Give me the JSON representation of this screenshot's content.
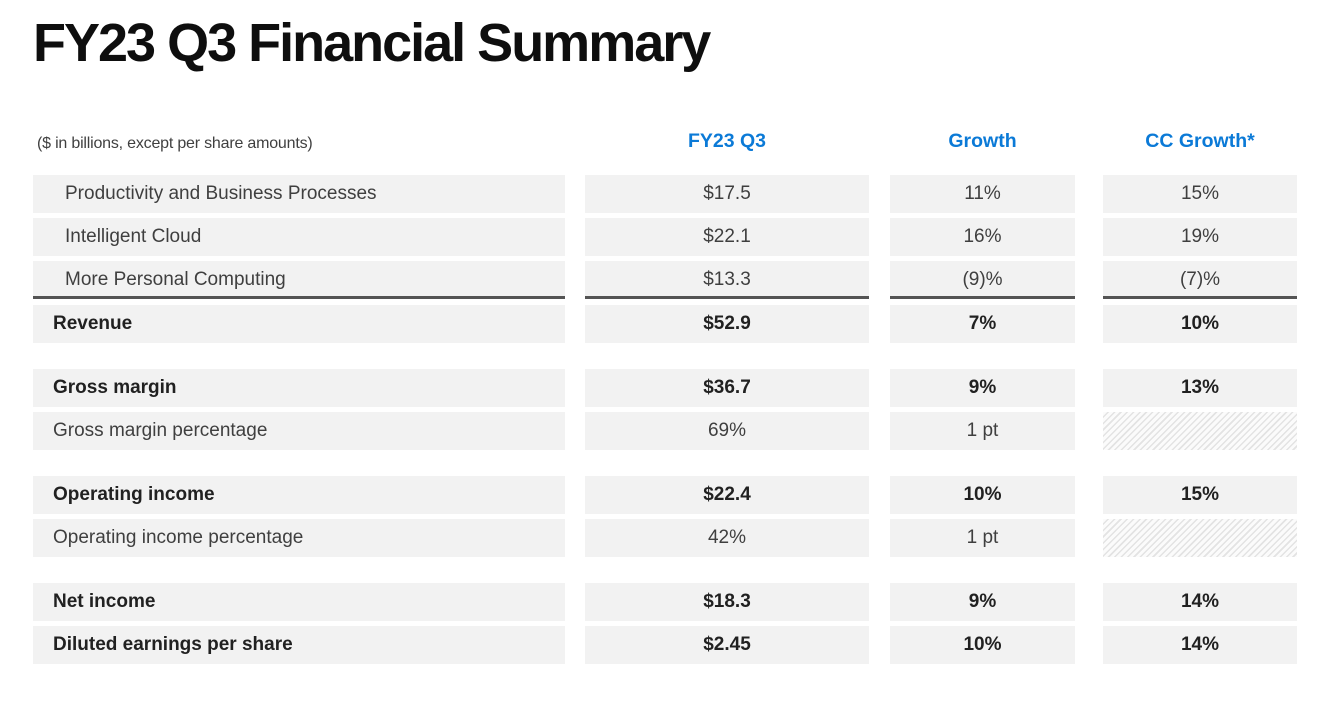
{
  "slide": {
    "title": "FY23 Q3 Financial Summary",
    "note": "($ in billions, except per share amounts)",
    "columns": [
      "FY23 Q3",
      "Growth",
      "CC Growth*"
    ],
    "colors": {
      "header_accent_blue": "#0b7ad7",
      "row_background": "#f2f2f2",
      "total_underline": "#545454",
      "title_text": "#0e0e0e",
      "body_text": "#3f3f3f"
    },
    "rows": [
      {
        "label": "Productivity and Business Processes",
        "fy23q3": "$17.5",
        "growth": "11%",
        "cc_growth": "15%"
      },
      {
        "label": "Intelligent Cloud",
        "fy23q3": "$22.1",
        "growth": "16%",
        "cc_growth": "19%"
      },
      {
        "label": "More Personal Computing",
        "fy23q3": "$13.3",
        "growth": "(9)%",
        "cc_growth": "(7)%"
      },
      {
        "label": "Revenue",
        "fy23q3": "$52.9",
        "growth": "7%",
        "cc_growth": "10%"
      },
      {
        "label": "Gross margin",
        "fy23q3": "$36.7",
        "growth": "9%",
        "cc_growth": "13%"
      },
      {
        "label": "Gross margin percentage",
        "fy23q3": "69%",
        "growth": "1 pt",
        "cc_growth": ""
      },
      {
        "label": "Operating income",
        "fy23q3": "$22.4",
        "growth": "10%",
        "cc_growth": "15%"
      },
      {
        "label": "Operating income percentage",
        "fy23q3": "42%",
        "growth": "1 pt",
        "cc_growth": ""
      },
      {
        "label": "Net income",
        "fy23q3": "$18.3",
        "growth": "9%",
        "cc_growth": "14%"
      },
      {
        "label": "Diluted earnings per share",
        "fy23q3": "$2.45",
        "growth": "10%",
        "cc_growth": "14%"
      }
    ]
  }
}
